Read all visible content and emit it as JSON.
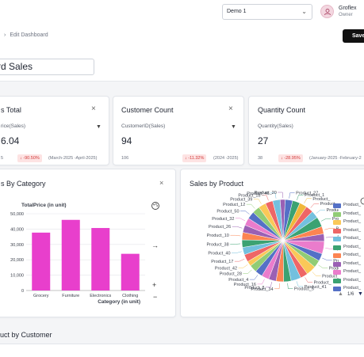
{
  "topbar": {
    "workspace_select": "Demo 1",
    "user_name": "Groflex",
    "user_role": "Owner"
  },
  "header": {
    "breadcrumb_current": "Edit Dashboard",
    "save_label": "Save",
    "title_value": "rd Sales"
  },
  "kpis": [
    {
      "title": "s Total",
      "field": "rice(Sales)",
      "value": "6.04",
      "prev": "5",
      "badge": "↓ -90.50%",
      "range": "(March-2025 -April-2025)"
    },
    {
      "title": "Customer Count",
      "field": "CustomerID(Sales)",
      "value": "94",
      "prev": "106",
      "badge": "↓ -11.32%",
      "range": "(2024 -2025)"
    },
    {
      "title": "Quantity Count",
      "field": "Quantity(Sales)",
      "value": "27",
      "prev": "38",
      "badge": "↓ -28.95%",
      "range": "(January-2025 -February-2"
    }
  ],
  "category_panel": {
    "title": "s By Category"
  },
  "product_panel": {
    "title": "Sales by Product",
    "page_indicator": "1/6"
  },
  "customer_section": {
    "title": "uct by Customer"
  },
  "chart_data": [
    {
      "type": "bar",
      "title": "TotalPrice (in unit)",
      "xlabel": "Category (in unit)",
      "ylabel": "",
      "categories": [
        "Grocery",
        "Furniture",
        "Electronics",
        "Clothing"
      ],
      "values": [
        37700,
        46000,
        40700,
        23900
      ],
      "ylim": [
        0,
        50000
      ],
      "yticks": [
        0,
        10000,
        20000,
        30000,
        40000,
        50000
      ],
      "ytick_labels": [
        "0",
        "10,000",
        "20,000",
        "30,000",
        "40,000",
        "50,000"
      ],
      "color": "#e83fcc",
      "grid": true
    },
    {
      "type": "pie",
      "title": "Sales by Product",
      "labels": [
        "Product_27",
        "Product_1",
        "Product_",
        "Product_",
        "Product_",
        "Product_",
        "Product_",
        "Product_",
        "Product_",
        "Product_",
        "Product_",
        "Product_",
        "Product_",
        "Product_41",
        "Product_5",
        "Product_34",
        "Product_8",
        "Product_16",
        "Product_4",
        "Product_28",
        "Product_42",
        "Product_17",
        "Product_40",
        "Product_38",
        "Product_10",
        "Product_26",
        "Product_32",
        "Product_50",
        "Product_12",
        "Product_39",
        "Product_18",
        "Product_46",
        "Product_20"
      ],
      "values": [
        3,
        3,
        3,
        3,
        3,
        4,
        3,
        3,
        5,
        3,
        3,
        4,
        3,
        4,
        3,
        3,
        3,
        3,
        3,
        3,
        2,
        3,
        3,
        3,
        3,
        3,
        3,
        3,
        3,
        3,
        3,
        3,
        2
      ],
      "colors": [
        "#5470c6",
        "#3ba272",
        "#f0b73a",
        "#ee6666",
        "#73c0de",
        "#3ba272",
        "#fc8452",
        "#9a60b4",
        "#ea7ccc",
        "#5470c6",
        "#91cc75",
        "#fac858",
        "#ee6666",
        "#73c0de",
        "#3ba272",
        "#fc8452",
        "#9a60b4",
        "#ea7ccc",
        "#5470c6",
        "#91cc75",
        "#fac858",
        "#ee6666",
        "#73c0de",
        "#3ba272",
        "#fc8452",
        "#9a60b4",
        "#ea7ccc",
        "#5470c6",
        "#91cc75",
        "#fac858",
        "#ee6666",
        "#73c0de",
        "#9a60b4"
      ],
      "legend": {
        "position": "right",
        "entries": [
          "Product_",
          "Product_",
          "Product_",
          "Product_",
          "Product_",
          "Product_",
          "Product_",
          "Product_",
          "Product_",
          "Product_",
          "Product_"
        ],
        "colors": [
          "#5470c6",
          "#91cc75",
          "#fac858",
          "#ee6666",
          "#73c0de",
          "#3ba272",
          "#fc8452",
          "#9a60b4",
          "#ea7ccc",
          "#3ba272",
          "#5470c6"
        ]
      }
    }
  ]
}
